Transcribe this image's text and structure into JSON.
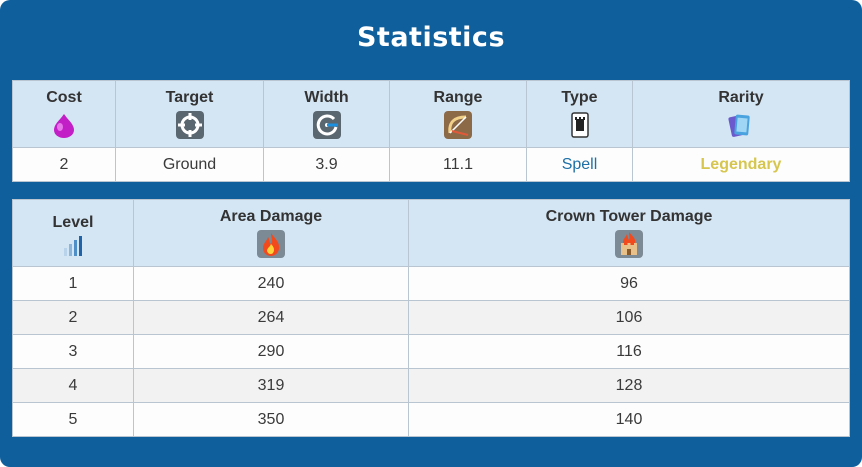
{
  "title": "Statistics",
  "stats": {
    "headers": {
      "cost": "Cost",
      "target": "Target",
      "width": "Width",
      "range": "Range",
      "type": "Type",
      "rarity": "Rarity"
    },
    "icons": {
      "cost": "elixir-drop-icon",
      "target": "crosshair-icon",
      "width": "radius-icon",
      "range": "bow-icon",
      "type": "card-icon",
      "rarity": "cards-stack-icon"
    },
    "values": {
      "cost": "2",
      "target": "Ground",
      "width": "3.9",
      "range": "11.1",
      "type": "Spell",
      "rarity": "Legendary"
    },
    "colors": {
      "type": "#1d6fa5",
      "rarity": "#d6c64f"
    }
  },
  "levels": {
    "headers": {
      "level": "Level",
      "area_damage": "Area Damage",
      "crown_tower_damage": "Crown Tower Damage"
    },
    "icons": {
      "level": "level-bars-icon",
      "area_damage": "fire-icon",
      "crown_tower_damage": "tower-fire-icon"
    },
    "rows": [
      {
        "level": "1",
        "area_damage": "240",
        "crown_tower_damage": "96"
      },
      {
        "level": "2",
        "area_damage": "264",
        "crown_tower_damage": "106"
      },
      {
        "level": "3",
        "area_damage": "290",
        "crown_tower_damage": "116"
      },
      {
        "level": "4",
        "area_damage": "319",
        "crown_tower_damage": "128"
      },
      {
        "level": "5",
        "area_damage": "350",
        "crown_tower_damage": "140"
      }
    ]
  },
  "theme": {
    "panel": "#0e5f9c",
    "header_bg": "#d4e6f4"
  }
}
